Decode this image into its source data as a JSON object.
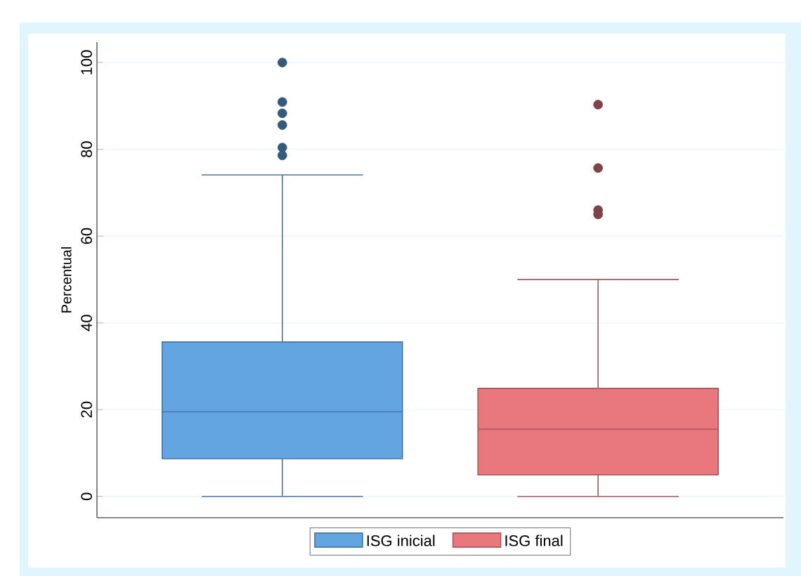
{
  "chart_data": {
    "type": "box",
    "ylabel": "Percentual",
    "categories": [
      null
    ],
    "ylim": [
      -4.9,
      104.7
    ],
    "yticks": [
      0,
      20,
      40,
      60,
      80,
      100
    ],
    "grid": "y",
    "legend": "bottom",
    "tick_labels": "y",
    "series": [
      {
        "name": "ISG inicial",
        "color": "#62a5e0",
        "boxes": [
          {
            "low": 0,
            "q1": 8.7,
            "median": 19.5,
            "q3": 35.6,
            "high": 74.1,
            "outliers": [
              100,
              90.9,
              88.3,
              85.6,
              80.4,
              78.6
            ]
          }
        ]
      },
      {
        "name": "ISG final",
        "color": "#e9787e",
        "boxes": [
          {
            "low": 0,
            "q1": 5,
            "median": 15.5,
            "q3": 24.9,
            "high": 50,
            "outliers": [
              90.3,
              75.7,
              66,
              65
            ]
          }
        ]
      }
    ]
  }
}
